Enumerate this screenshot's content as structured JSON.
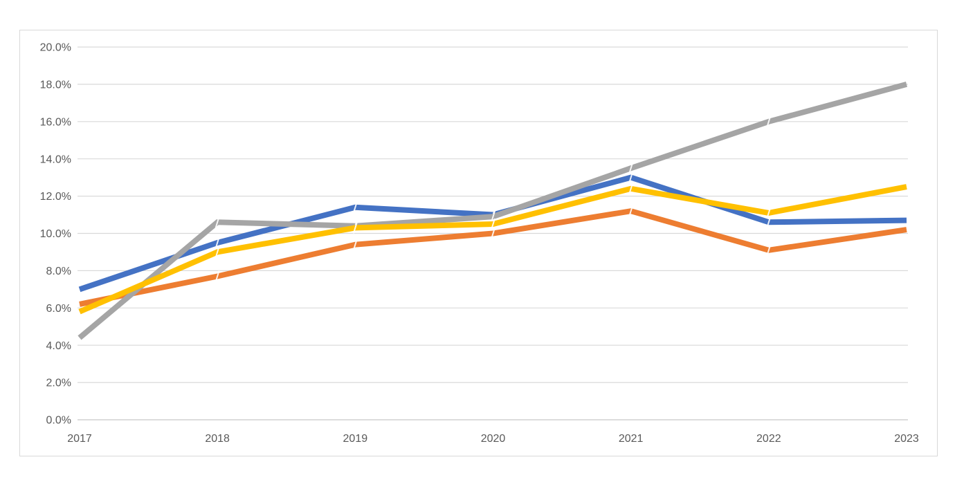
{
  "chart_data": {
    "type": "line",
    "title": "",
    "xlabel": "",
    "ylabel": "",
    "x_categories": [
      "2017",
      "2018",
      "2019",
      "2020",
      "2021",
      "2022",
      "2023"
    ],
    "y_axis": {
      "min": 0,
      "max": 20,
      "tick_step": 2,
      "tick_labels": [
        "0.0%",
        "2.0%",
        "4.0%",
        "6.0%",
        "8.0%",
        "10.0%",
        "12.0%",
        "14.0%",
        "16.0%",
        "18.0%",
        "20.0%"
      ]
    },
    "grid": true,
    "legend": "none",
    "series": [
      {
        "name": "blue-series",
        "color": "#4472C4",
        "values": [
          7.0,
          9.5,
          11.4,
          11.0,
          13.0,
          10.6,
          10.7
        ]
      },
      {
        "name": "orange-series",
        "color": "#ED7D31",
        "values": [
          6.2,
          7.7,
          9.4,
          10.0,
          11.2,
          9.1,
          10.2
        ]
      },
      {
        "name": "gray-series",
        "color": "#A5A5A5",
        "values": [
          4.4,
          10.6,
          10.4,
          10.9,
          13.5,
          16.0,
          18.0
        ]
      },
      {
        "name": "gold-series",
        "color": "#FFC000",
        "values": [
          5.8,
          9.0,
          10.3,
          10.5,
          12.4,
          11.1,
          12.5
        ]
      }
    ],
    "style": {
      "line_width": 8,
      "gridline_color": "#D9D9D9",
      "axis_line_color": "#C6C6C6",
      "tick_label_color": "#595959",
      "tick_label_size": 16,
      "frame_border_color": "#D8D8D8",
      "background": "#FFFFFF"
    }
  }
}
